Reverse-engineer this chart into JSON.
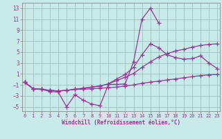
{
  "xlabel": "Windchill (Refroidissement éolien,°C)",
  "ylabel_ticks": [
    -5,
    -3,
    -1,
    1,
    3,
    5,
    7,
    9,
    11,
    13
  ],
  "xticks": [
    0,
    1,
    2,
    3,
    4,
    5,
    6,
    7,
    8,
    9,
    10,
    11,
    12,
    13,
    14,
    15,
    16,
    17,
    18,
    19,
    20,
    21,
    22,
    23
  ],
  "xlim": [
    -0.3,
    23.3
  ],
  "ylim": [
    -5.8,
    14.0
  ],
  "background_color": "#c8eae8",
  "grid_color": "#a0c0be",
  "line_color": "#993399",
  "line_width": 0.9,
  "marker": "+",
  "marker_size": 4,
  "marker_ew": 0.9,
  "series": [
    {
      "x": [
        0,
        1,
        2,
        3,
        4,
        5,
        6,
        7,
        8,
        9,
        10,
        11,
        12,
        13,
        14,
        15,
        16
      ],
      "y": [
        -0.5,
        -1.7,
        -1.8,
        -2.2,
        -2.3,
        -5.0,
        -2.8,
        -3.8,
        -4.5,
        -4.8,
        -0.9,
        -0.9,
        -0.8,
        3.2,
        11.0,
        13.0,
        10.3
      ]
    },
    {
      "x": [
        0,
        1,
        2,
        3,
        4,
        5,
        6,
        7,
        8,
        9,
        10,
        11,
        12,
        13,
        14,
        15,
        16,
        17,
        18,
        19,
        20,
        21,
        22,
        23
      ],
      "y": [
        -0.5,
        -1.7,
        -1.8,
        -2.0,
        -2.1,
        -2.0,
        -1.8,
        -1.8,
        -1.7,
        -1.6,
        -1.5,
        -1.4,
        -1.2,
        -1.0,
        -0.7,
        -0.5,
        -0.3,
        -0.1,
        0.1,
        0.3,
        0.5,
        0.7,
        0.85,
        0.9
      ]
    },
    {
      "x": [
        0,
        1,
        2,
        3,
        4,
        5,
        6,
        7,
        8,
        9,
        10,
        11,
        12,
        13,
        14,
        15,
        16,
        17,
        18,
        19,
        20,
        21,
        22,
        23
      ],
      "y": [
        -0.5,
        -1.7,
        -1.8,
        -2.0,
        -2.1,
        -2.0,
        -1.8,
        -1.6,
        -1.4,
        -1.2,
        -0.8,
        -0.2,
        0.4,
        1.1,
        2.2,
        3.2,
        4.1,
        4.7,
        5.2,
        5.5,
        5.9,
        6.2,
        6.4,
        6.5
      ]
    },
    {
      "x": [
        0,
        1,
        2,
        3,
        4,
        5,
        6,
        7,
        8,
        9,
        10,
        11,
        12,
        13,
        14,
        15,
        16,
        17,
        18,
        19,
        20,
        21,
        22,
        23
      ],
      "y": [
        -0.5,
        -1.7,
        -1.8,
        -2.0,
        -2.1,
        -2.0,
        -1.8,
        -1.6,
        -1.4,
        -1.2,
        -0.8,
        0.1,
        0.9,
        2.2,
        4.5,
        6.5,
        5.8,
        4.5,
        4.0,
        3.7,
        3.8,
        4.3,
        3.0,
        2.0
      ]
    }
  ]
}
